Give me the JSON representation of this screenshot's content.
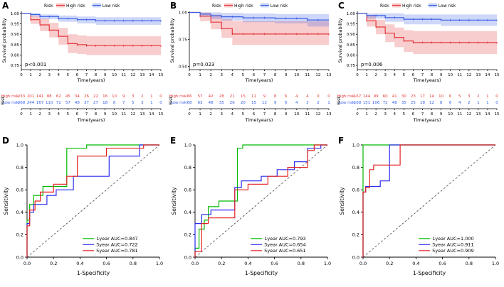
{
  "chart_data": [
    {
      "type": "line",
      "kind": "km",
      "panel": "A",
      "legend_title": "Risk",
      "ylabel": "Survival probability",
      "xlabel": "Time(years)",
      "pvalue": "p<0.001",
      "xlim": [
        0,
        15
      ],
      "xticks": [
        0,
        1,
        2,
        3,
        4,
        5,
        6,
        7,
        8,
        9,
        10,
        11,
        12,
        13,
        14,
        15
      ],
      "ylim": [
        0.73,
        1.01
      ],
      "yticks": [
        0.75,
        0.8,
        0.85,
        0.9,
        0.95,
        1.0
      ],
      "series": [
        {
          "name": "High risk",
          "color": "#e4393c",
          "fill": "rgba(228,57,60,0.25)",
          "x": [
            0,
            1,
            2,
            3,
            4,
            5,
            6,
            7,
            15
          ],
          "y": [
            1.0,
            0.97,
            0.945,
            0.92,
            0.89,
            0.855,
            0.85,
            0.845,
            0.84
          ],
          "lo": [
            1.0,
            0.95,
            0.915,
            0.885,
            0.85,
            0.81,
            0.805,
            0.8,
            0.79
          ],
          "hi": [
            1.0,
            0.99,
            0.975,
            0.955,
            0.93,
            0.9,
            0.895,
            0.89,
            0.89
          ]
        },
        {
          "name": "Low risk",
          "color": "#3a5fe5",
          "fill": "rgba(58,95,229,0.25)",
          "x": [
            0,
            1,
            2,
            4,
            6,
            8,
            15
          ],
          "y": [
            1.0,
            0.995,
            0.985,
            0.975,
            0.97,
            0.965,
            0.96
          ],
          "lo": [
            1.0,
            0.985,
            0.972,
            0.96,
            0.952,
            0.945,
            0.935
          ],
          "hi": [
            1.0,
            1.0,
            0.995,
            0.99,
            0.985,
            0.982,
            0.98
          ]
        }
      ],
      "risk_table": {
        "side_label": "Risk",
        "axis_label": "Time(years)",
        "rows": [
          {
            "label": "High risk-",
            "color": "#e4393c",
            "values": [
              233,
              201,
              141,
              88,
              62,
              45,
              34,
              26,
              22,
              16,
              10,
              9,
              3,
              2,
              1,
              0
            ]
          },
          {
            "label": "Low risk-",
            "color": "#3a5fe5",
            "values": [
              268,
              244,
              167,
              110,
              71,
              57,
              48,
              37,
              27,
              18,
              8,
              7,
              5,
              3,
              1,
              0
            ]
          }
        ]
      }
    },
    {
      "type": "line",
      "kind": "km",
      "panel": "B",
      "legend_title": "Risk",
      "ylabel": "Survival probability",
      "xlabel": "Time(years)",
      "pvalue": "p=0.023",
      "xlim": [
        0,
        13
      ],
      "xticks": [
        0,
        1,
        2,
        3,
        4,
        5,
        6,
        7,
        8,
        9,
        10,
        11,
        12,
        13
      ],
      "ylim": [
        0.47,
        1.01
      ],
      "yticks": [
        0.5,
        0.75,
        1.0
      ],
      "series": [
        {
          "name": "High risk",
          "color": "#e4393c",
          "fill": "rgba(228,57,60,0.25)",
          "x": [
            0,
            1,
            2,
            3,
            4,
            13
          ],
          "y": [
            1.0,
            0.965,
            0.91,
            0.85,
            0.8,
            0.79
          ],
          "lo": [
            1.0,
            0.92,
            0.845,
            0.765,
            0.7,
            0.66
          ],
          "hi": [
            1.0,
            1.0,
            0.98,
            0.94,
            0.92,
            0.93
          ]
        },
        {
          "name": "Low risk",
          "color": "#3a5fe5",
          "fill": "rgba(58,95,229,0.25)",
          "x": [
            0,
            1,
            2,
            3,
            5,
            8,
            11,
            13
          ],
          "y": [
            1.0,
            0.985,
            0.97,
            0.96,
            0.95,
            0.945,
            0.93,
            0.93
          ],
          "lo": [
            1.0,
            0.96,
            0.938,
            0.925,
            0.91,
            0.9,
            0.87,
            0.86
          ],
          "hi": [
            1.0,
            1.0,
            1.0,
            0.995,
            0.99,
            0.985,
            0.985,
            0.99
          ]
        }
      ],
      "risk_table": {
        "side_label": "Risk",
        "axis_label": "Time(years)",
        "rows": [
          {
            "label": "High risk-",
            "color": "#e4393c",
            "values": [
              66,
              57,
              42,
              28,
              21,
              15,
              11,
              9,
              8,
              6,
              4,
              4,
              0,
              0
            ]
          },
          {
            "label": "Low risk-",
            "color": "#3a5fe5",
            "values": [
              68,
              63,
              48,
              35,
              26,
              20,
              15,
              12,
              9,
              6,
              4,
              3,
              2,
              1
            ]
          }
        ]
      }
    },
    {
      "type": "line",
      "kind": "km",
      "panel": "C",
      "legend_title": "Risk",
      "ylabel": "Survival probability",
      "xlabel": "Time(years)",
      "pvalue": "p=0.006",
      "xlim": [
        0,
        15
      ],
      "xticks": [
        0,
        1,
        2,
        3,
        4,
        5,
        6,
        7,
        8,
        9,
        10,
        11,
        12,
        13,
        14,
        15
      ],
      "ylim": [
        0.73,
        1.01
      ],
      "yticks": [
        0.75,
        0.8,
        0.85,
        0.9,
        0.95,
        1.0
      ],
      "series": [
        {
          "name": "High risk",
          "color": "#e4393c",
          "fill": "rgba(228,57,60,0.25)",
          "x": [
            0,
            1,
            2,
            3,
            4,
            5,
            6,
            15
          ],
          "y": [
            1.0,
            0.965,
            0.935,
            0.905,
            0.885,
            0.868,
            0.86,
            0.855
          ],
          "lo": [
            1.0,
            0.937,
            0.9,
            0.862,
            0.838,
            0.815,
            0.805,
            0.79
          ],
          "hi": [
            1.0,
            0.993,
            0.97,
            0.948,
            0.932,
            0.92,
            0.915,
            0.92
          ]
        },
        {
          "name": "Low risk",
          "color": "#3a5fe5",
          "fill": "rgba(58,95,229,0.25)",
          "x": [
            0,
            1,
            3,
            5,
            9,
            15
          ],
          "y": [
            1.0,
            0.99,
            0.98,
            0.972,
            0.968,
            0.965
          ],
          "lo": [
            1.0,
            0.975,
            0.96,
            0.948,
            0.94,
            0.93
          ],
          "hi": [
            1.0,
            1.0,
            1.0,
            0.995,
            0.995,
            0.998
          ]
        }
      ],
      "risk_table": {
        "side_label": "Risk",
        "axis_label": "Time(years)",
        "rows": [
          {
            "label": "High risk-",
            "color": "#e4393c",
            "values": [
              167,
              144,
              99,
              60,
              41,
              30,
              23,
              17,
              14,
              10,
              6,
              5,
              3,
              2,
              1,
              0
            ]
          },
          {
            "label": "Low risk-",
            "color": "#3a5fe5",
            "values": [
              168,
              151,
              106,
              72,
              48,
              35,
              25,
              18,
              12,
              8,
              6,
              4,
              2,
              1,
              1,
              0
            ]
          }
        ]
      }
    },
    {
      "type": "line",
      "kind": "roc",
      "panel": "D",
      "xlabel": "1-Specificity",
      "ylabel": "Sensitivity",
      "xticks": [
        0,
        0.2,
        0.4,
        0.6,
        0.8,
        1.0
      ],
      "yticks": [
        0,
        0.2,
        0.4,
        0.6,
        0.8,
        1.0
      ],
      "diagonal": true,
      "series": [
        {
          "name": "1year AUC=0.847",
          "color": "#00bb00",
          "pts": [
            [
              0,
              0
            ],
            [
              0,
              0.33
            ],
            [
              0.02,
              0.33
            ],
            [
              0.02,
              0.47
            ],
            [
              0.05,
              0.47
            ],
            [
              0.05,
              0.55
            ],
            [
              0.12,
              0.55
            ],
            [
              0.12,
              0.63
            ],
            [
              0.3,
              0.63
            ],
            [
              0.3,
              0.97
            ],
            [
              0.45,
              0.97
            ],
            [
              0.45,
              1
            ],
            [
              1,
              1
            ]
          ]
        },
        {
          "name": "3year AUC=0.722",
          "color": "#2b2bee",
          "pts": [
            [
              0,
              0
            ],
            [
              0,
              0.3
            ],
            [
              0.02,
              0.3
            ],
            [
              0.02,
              0.4
            ],
            [
              0.05,
              0.4
            ],
            [
              0.05,
              0.47
            ],
            [
              0.15,
              0.47
            ],
            [
              0.15,
              0.55
            ],
            [
              0.22,
              0.55
            ],
            [
              0.22,
              0.6
            ],
            [
              0.35,
              0.6
            ],
            [
              0.35,
              0.72
            ],
            [
              0.62,
              0.72
            ],
            [
              0.62,
              0.9
            ],
            [
              0.85,
              0.9
            ],
            [
              0.85,
              1
            ],
            [
              1,
              1
            ]
          ]
        },
        {
          "name": "5year AUC=0.781",
          "color": "#e42222",
          "pts": [
            [
              0,
              0
            ],
            [
              0,
              0.28
            ],
            [
              0.02,
              0.28
            ],
            [
              0.02,
              0.42
            ],
            [
              0.06,
              0.42
            ],
            [
              0.06,
              0.5
            ],
            [
              0.1,
              0.5
            ],
            [
              0.1,
              0.58
            ],
            [
              0.2,
              0.58
            ],
            [
              0.2,
              0.65
            ],
            [
              0.3,
              0.65
            ],
            [
              0.3,
              0.72
            ],
            [
              0.38,
              0.72
            ],
            [
              0.38,
              0.9
            ],
            [
              0.6,
              0.9
            ],
            [
              0.6,
              0.97
            ],
            [
              0.88,
              0.97
            ],
            [
              0.88,
              1
            ],
            [
              1,
              1
            ]
          ]
        }
      ]
    },
    {
      "type": "line",
      "kind": "roc",
      "panel": "E",
      "xlabel": "1-Specificity",
      "ylabel": "Sensitivity",
      "xticks": [
        0,
        0.2,
        0.4,
        0.6,
        0.8,
        1.0
      ],
      "yticks": [
        0,
        0.2,
        0.4,
        0.6,
        0.8,
        1.0
      ],
      "diagonal": true,
      "series": [
        {
          "name": "1year AUC=0.793",
          "color": "#00bb00",
          "pts": [
            [
              0,
              0
            ],
            [
              0,
              0.08
            ],
            [
              0.03,
              0.08
            ],
            [
              0.03,
              0.25
            ],
            [
              0.07,
              0.25
            ],
            [
              0.07,
              0.33
            ],
            [
              0.1,
              0.33
            ],
            [
              0.1,
              0.45
            ],
            [
              0.18,
              0.45
            ],
            [
              0.18,
              0.5
            ],
            [
              0.32,
              0.5
            ],
            [
              0.32,
              0.97
            ],
            [
              0.36,
              0.97
            ],
            [
              0.36,
              1
            ],
            [
              1,
              1
            ]
          ]
        },
        {
          "name": "3year AUC=0.654",
          "color": "#2b2bee",
          "pts": [
            [
              0,
              0
            ],
            [
              0,
              0.3
            ],
            [
              0.05,
              0.3
            ],
            [
              0.05,
              0.38
            ],
            [
              0.12,
              0.38
            ],
            [
              0.12,
              0.42
            ],
            [
              0.3,
              0.42
            ],
            [
              0.3,
              0.62
            ],
            [
              0.35,
              0.62
            ],
            [
              0.35,
              0.68
            ],
            [
              0.5,
              0.68
            ],
            [
              0.5,
              0.72
            ],
            [
              0.62,
              0.72
            ],
            [
              0.62,
              0.78
            ],
            [
              0.75,
              0.78
            ],
            [
              0.75,
              0.85
            ],
            [
              0.85,
              0.85
            ],
            [
              0.85,
              0.97
            ],
            [
              0.95,
              0.97
            ],
            [
              0.95,
              1
            ],
            [
              1,
              1
            ]
          ]
        },
        {
          "name": "5year AUC=0.651",
          "color": "#e42222",
          "pts": [
            [
              0,
              0
            ],
            [
              0,
              0.05
            ],
            [
              0.05,
              0.05
            ],
            [
              0.05,
              0.3
            ],
            [
              0.1,
              0.3
            ],
            [
              0.1,
              0.35
            ],
            [
              0.3,
              0.35
            ],
            [
              0.3,
              0.6
            ],
            [
              0.4,
              0.6
            ],
            [
              0.4,
              0.65
            ],
            [
              0.55,
              0.65
            ],
            [
              0.55,
              0.72
            ],
            [
              0.7,
              0.72
            ],
            [
              0.7,
              0.8
            ],
            [
              0.85,
              0.8
            ],
            [
              0.85,
              0.95
            ],
            [
              0.9,
              0.95
            ],
            [
              0.9,
              1
            ],
            [
              1,
              1
            ]
          ]
        }
      ]
    },
    {
      "type": "line",
      "kind": "roc",
      "panel": "F",
      "xlabel": "1-Specificity",
      "ylabel": "Sensitivity",
      "xticks": [
        0,
        0.2,
        0.4,
        0.6,
        0.8,
        1.0
      ],
      "yticks": [
        0,
        0.2,
        0.4,
        0.6,
        0.8,
        1.0
      ],
      "diagonal": true,
      "series": [
        {
          "name": "1year AUC=1.000",
          "color": "#00bb00",
          "pts": [
            [
              0,
              0
            ],
            [
              0,
              1
            ],
            [
              1,
              1
            ]
          ]
        },
        {
          "name": "3year AUC=0.911",
          "color": "#2b2bee",
          "pts": [
            [
              0,
              0
            ],
            [
              0,
              0.58
            ],
            [
              0.02,
              0.58
            ],
            [
              0.02,
              0.63
            ],
            [
              0.13,
              0.63
            ],
            [
              0.13,
              0.68
            ],
            [
              0.2,
              0.68
            ],
            [
              0.2,
              1
            ],
            [
              1,
              1
            ]
          ]
        },
        {
          "name": "5year AUC=0.909",
          "color": "#e42222",
          "pts": [
            [
              0,
              0
            ],
            [
              0,
              0.58
            ],
            [
              0.02,
              0.58
            ],
            [
              0.02,
              0.62
            ],
            [
              0.05,
              0.62
            ],
            [
              0.05,
              0.78
            ],
            [
              0.08,
              0.78
            ],
            [
              0.08,
              0.82
            ],
            [
              0.28,
              0.82
            ],
            [
              0.28,
              1
            ],
            [
              1,
              1
            ]
          ]
        }
      ]
    }
  ]
}
